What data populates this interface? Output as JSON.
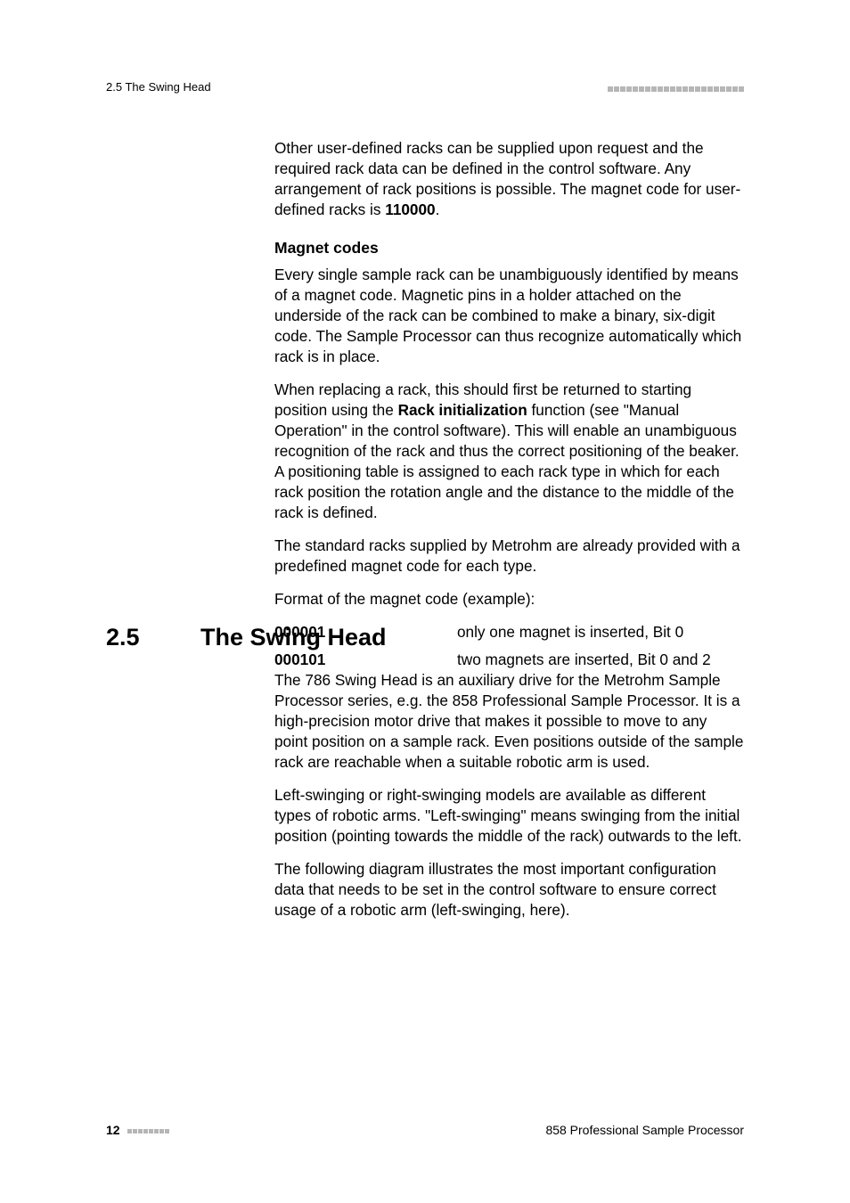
{
  "header": {
    "left": "2.5 The Swing Head"
  },
  "body1": {
    "p1a": "Other user-defined racks can be supplied upon request and the required rack data can be defined in the control software. Any arrangement of rack positions is possible. The magnet code for user-defined racks is ",
    "p1code": "110000",
    "p1b": ".",
    "subhead": "Magnet codes",
    "p2": "Every single sample rack can be unambiguously identified by means of a magnet code. Magnetic pins in a holder attached on the underside of the rack can be combined to make a binary, six-digit code. The Sample Processor can thus recognize automatically which rack is in place.",
    "p3a": "When replacing a rack, this should first be returned to starting position using the ",
    "p3bold": "Rack initialization",
    "p3b": " function (see \"Manual Operation\" in the control software). This will enable an unambiguous recognition of the rack and thus the correct positioning of the beaker. A positioning table is assigned to each rack type in which for each rack position the rotation angle and the distance to the middle of the rack is defined.",
    "p4": "The standard racks supplied by Metrohm are already provided with a predefined magnet code for each type.",
    "p5": "Format of the magnet code (example):",
    "row1k": "000001",
    "row1v": "only one magnet is inserted, Bit 0",
    "row2k": "000101",
    "row2v": "two magnets are inserted, Bit 0 and 2"
  },
  "section": {
    "num": "2.5",
    "title": "The Swing Head"
  },
  "body2": {
    "p1": "The 786 Swing Head is an auxiliary drive for the Metrohm Sample Processor series, e.g. the 858 Professional Sample Processor. It is a high-precision motor drive that makes it possible to move to any point position on a sample rack. Even positions outside of the sample rack are reachable when a suitable robotic arm is used.",
    "p2": "Left-swinging or right-swinging models are available as different types of robotic arms. \"Left-swinging\" means swinging from the initial position (pointing towards the middle of the rack) outwards to the left.",
    "p3": "The following diagram illustrates the most important configuration data that needs to be set in the control software to ensure correct usage of a robotic arm (left-swinging, here)."
  },
  "footer": {
    "page": "12",
    "right": "858 Professional Sample Processor"
  },
  "style": {
    "square_count_header": 22,
    "square_count_footer": 8
  }
}
